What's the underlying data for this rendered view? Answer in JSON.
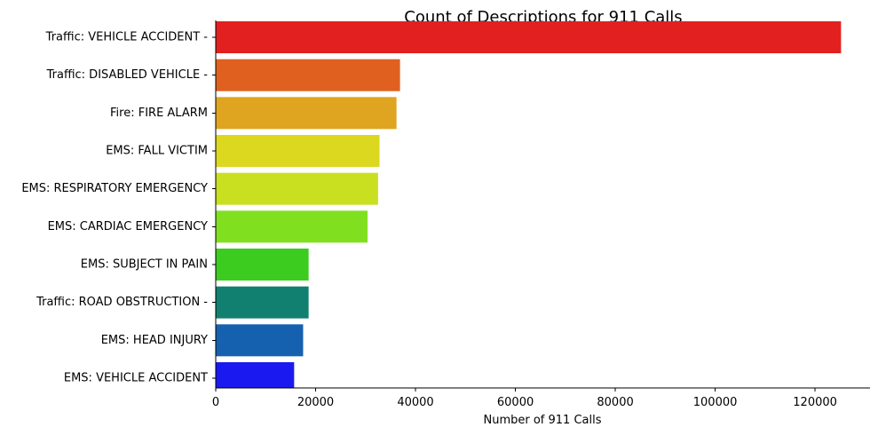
{
  "chart_data": {
    "type": "bar",
    "orientation": "horizontal",
    "title": "Count of Descriptions for 911 Calls",
    "xlabel": "Number of 911 Calls",
    "ylabel": "",
    "xlim": [
      0,
      131000
    ],
    "xticks": [
      0,
      20000,
      40000,
      60000,
      80000,
      100000,
      120000
    ],
    "grid": false,
    "legend": "none",
    "categories": [
      "Traffic: VEHICLE ACCIDENT -",
      "Traffic: DISABLED VEHICLE -",
      "Fire: FIRE ALARM",
      "EMS: FALL VICTIM",
      "EMS: RESPIRATORY EMERGENCY",
      "EMS: CARDIAC EMERGENCY",
      "EMS: SUBJECT IN PAIN",
      "Traffic: ROAD OBSTRUCTION -",
      "EMS: HEAD INJURY",
      "EMS: VEHICLE ACCIDENT"
    ],
    "values": [
      125200,
      36900,
      36200,
      32800,
      32500,
      30400,
      18600,
      18600,
      17500,
      15700
    ],
    "colors": [
      "#e32020",
      "#e06020",
      "#e0a520",
      "#dcd820",
      "#c8e020",
      "#80e020",
      "#3ccc20",
      "#128070",
      "#1660b0",
      "#1a1af0"
    ]
  }
}
